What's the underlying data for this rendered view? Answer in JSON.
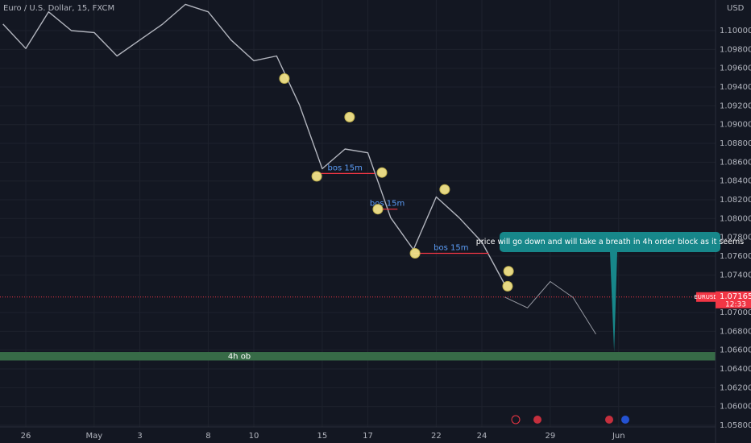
{
  "chart_data": {
    "type": "line",
    "title": "Euro / U.S. Dollar, 15, FXCM",
    "currency": "USD",
    "categories": [
      null,
      "26",
      null,
      null,
      "May",
      null,
      "3",
      null,
      null,
      "8",
      null,
      "10",
      null,
      null,
      "15",
      null,
      "17",
      null,
      null,
      "22",
      null,
      "24",
      null,
      null,
      "29",
      null,
      null,
      "Jun"
    ],
    "series": [
      {
        "color": "#b2b5be",
        "values": [
          1.1007,
          1.0981,
          1.102,
          1.1,
          1.0998,
          1.0973,
          1.099,
          1.1007,
          1.1028,
          1.102,
          1.099,
          1.0968,
          1.0973,
          1.0921,
          1.0853,
          1.0874,
          1.087,
          1.0801,
          1.0767,
          1.0823,
          1.0801,
          1.0775,
          1.073,
          null,
          null,
          null,
          null,
          null
        ]
      },
      {
        "color": "#9598a1",
        "values": [
          null,
          null,
          null,
          null,
          null,
          null,
          null,
          null,
          null,
          null,
          null,
          null,
          null,
          null,
          null,
          null,
          null,
          null,
          null,
          null,
          null,
          null,
          1.07165,
          1.0705,
          1.0733,
          1.0716,
          1.0677,
          null
        ]
      }
    ],
    "ylim": [
      1.05783,
      1.10326
    ],
    "yticks": [
      {
        "value": 1.1,
        "label": "1.10000"
      },
      {
        "value": 1.098,
        "label": "1.09800"
      },
      {
        "value": 1.096,
        "label": "1.09600"
      },
      {
        "value": 1.094,
        "label": "1.09400"
      },
      {
        "value": 1.092,
        "label": "1.09200"
      },
      {
        "value": 1.09,
        "label": "1.09000"
      },
      {
        "value": 1.088,
        "label": "1.08800"
      },
      {
        "value": 1.086,
        "label": "1.08600"
      },
      {
        "value": 1.084,
        "label": "1.08400"
      },
      {
        "value": 1.082,
        "label": "1.08200"
      },
      {
        "value": 1.08,
        "label": "1.08000"
      },
      {
        "value": 1.078,
        "label": "1.07800"
      },
      {
        "value": 1.076,
        "label": "1.07600"
      },
      {
        "value": 1.074,
        "label": "1.07400"
      },
      {
        "value": 1.07,
        "label": "1.07000"
      },
      {
        "value": 1.068,
        "label": "1.06800"
      },
      {
        "value": 1.066,
        "label": "1.06600"
      },
      {
        "value": 1.064,
        "label": "1.06400"
      },
      {
        "value": 1.062,
        "label": "1.06200"
      },
      {
        "value": 1.06,
        "label": "1.06000"
      },
      {
        "value": 1.058,
        "label": "1.05800"
      }
    ],
    "grid": true,
    "levels": [
      {
        "label": "bos 15m",
        "value": 1.0848,
        "x": [
          13.7,
          16.3
        ]
      },
      {
        "label": "bos 15m",
        "value": 1.081,
        "x": [
          16.4,
          17.3
        ]
      },
      {
        "label": "bos 15m",
        "value": 1.0763,
        "x": [
          18.0,
          21.3
        ]
      }
    ],
    "markers": [
      {
        "x": 12.34,
        "y": 1.0949
      },
      {
        "x": 15.2,
        "y": 1.0908
      },
      {
        "x": 13.76,
        "y": 1.0845
      },
      {
        "x": 16.62,
        "y": 1.0849
      },
      {
        "x": 16.44,
        "y": 1.081
      },
      {
        "x": 19.37,
        "y": 1.0831
      },
      {
        "x": 18.07,
        "y": 1.0763
      },
      {
        "x": 22.17,
        "y": 1.0744
      },
      {
        "x": 22.13,
        "y": 1.0728
      }
    ],
    "zone": {
      "label": "4h ob",
      "range": [
        1.0649,
        1.0658
      ]
    },
    "annotation": {
      "text": "price will go down and will take a breath in 4h order block as it seems",
      "x": 26.8,
      "y": 1.0658
    },
    "last_price": {
      "symbol": "EURUSD",
      "value": 1.07165,
      "countdown": "12:33"
    }
  }
}
